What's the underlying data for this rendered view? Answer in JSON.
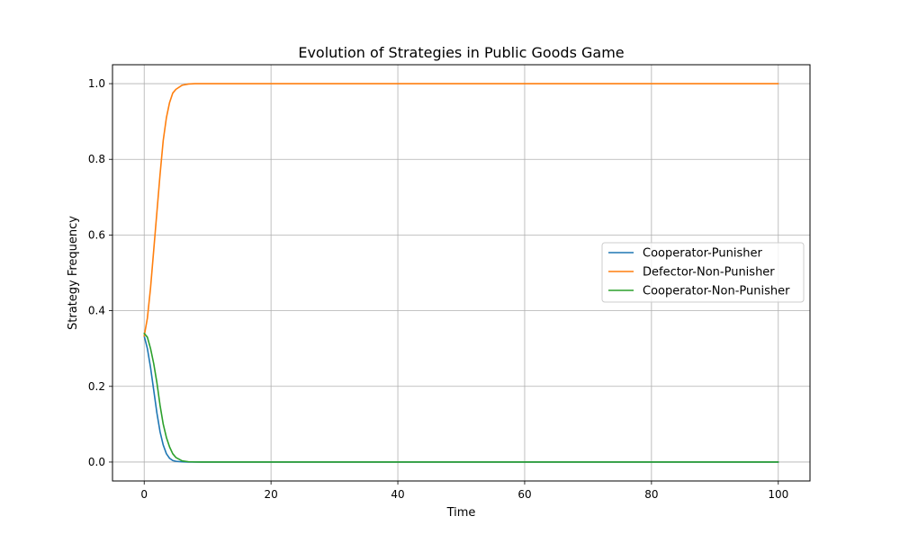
{
  "chart_data": {
    "type": "line",
    "title": "Evolution of Strategies in Public Goods Game",
    "xlabel": "Time",
    "ylabel": "Strategy Frequency",
    "xlim": [
      -5,
      105
    ],
    "ylim": [
      -0.05,
      1.05
    ],
    "xticks": [
      0,
      20,
      40,
      60,
      80,
      100
    ],
    "xtick_labels": [
      "0",
      "20",
      "40",
      "60",
      "80",
      "100"
    ],
    "yticks": [
      0.0,
      0.2,
      0.4,
      0.6,
      0.8,
      1.0
    ],
    "ytick_labels": [
      "0.0",
      "0.2",
      "0.4",
      "0.6",
      "0.8",
      "1.0"
    ],
    "grid": true,
    "legend_position": "center-right",
    "x": [
      0,
      0.5,
      1,
      1.5,
      2,
      2.5,
      3,
      3.5,
      4,
      4.5,
      5,
      6,
      7,
      8,
      9,
      10,
      12,
      15,
      20,
      30,
      40,
      50,
      60,
      70,
      80,
      90,
      100
    ],
    "series": [
      {
        "name": "Cooperator-Punisher",
        "color": "#1f77b4",
        "values": [
          0.333,
          0.3,
          0.25,
          0.19,
          0.13,
          0.08,
          0.045,
          0.022,
          0.01,
          0.004,
          0.002,
          0.0005,
          0.0001,
          0,
          0,
          0,
          0,
          0,
          0,
          0,
          0,
          0,
          0,
          0,
          0,
          0,
          0
        ]
      },
      {
        "name": "Defector-Non-Punisher",
        "color": "#ff7f0e",
        "values": [
          0.333,
          0.38,
          0.46,
          0.56,
          0.66,
          0.76,
          0.85,
          0.91,
          0.95,
          0.975,
          0.985,
          0.996,
          0.999,
          1.0,
          1.0,
          1.0,
          1.0,
          1.0,
          1.0,
          1.0,
          1.0,
          1.0,
          1.0,
          1.0,
          1.0,
          1.0,
          1.0
        ]
      },
      {
        "name": "Cooperator-Non-Punisher",
        "color": "#2ca02c",
        "values": [
          0.34,
          0.33,
          0.3,
          0.26,
          0.21,
          0.15,
          0.1,
          0.065,
          0.04,
          0.022,
          0.012,
          0.003,
          0.0008,
          0.0002,
          0,
          0,
          0,
          0,
          0,
          0,
          0,
          0,
          0,
          0,
          0,
          0,
          0
        ]
      }
    ]
  }
}
